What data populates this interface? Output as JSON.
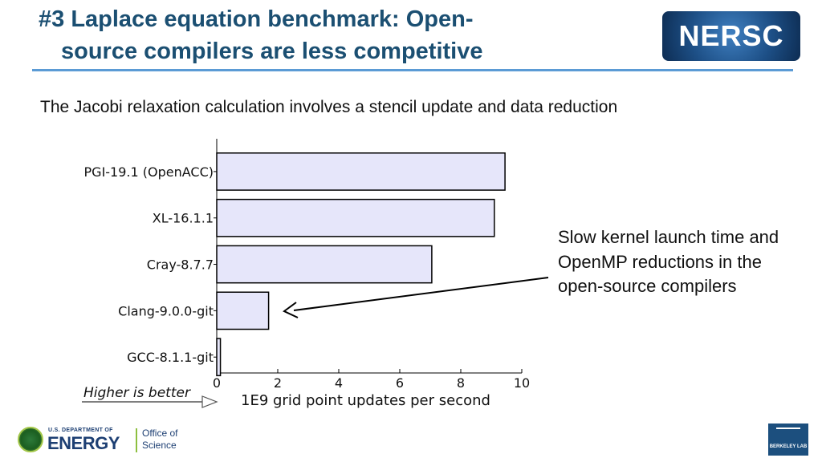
{
  "slide": {
    "title_line1": "#3 Laplace equation benchmark: Open-",
    "title_line2": "source compilers are less competitive",
    "subtitle": "The Jacobi relaxation calculation involves a stencil update and data reduction",
    "annotation": "Slow kernel launch time and OpenMP reductions in the open-source compilers"
  },
  "logos": {
    "nersc": "NERSC",
    "doe_small": "U.S. DEPARTMENT OF",
    "doe_big": "ENERGY",
    "doe_office": "Office of Science",
    "berkeley": "BERKELEY LAB"
  },
  "colors": {
    "title": "#1b4f72",
    "rule": "#5b9bd5",
    "bar_fill": "#e6e6fa",
    "bar_stroke": "#000000"
  },
  "chart_data": {
    "type": "bar",
    "orientation": "horizontal",
    "categories": [
      "PGI-19.1 (OpenACC)",
      "XL-16.1.1",
      "Cray-8.7.7",
      "Clang-9.0.0-git",
      "GCC-8.1.1-git"
    ],
    "values": [
      9.45,
      9.1,
      7.05,
      1.7,
      0.12
    ],
    "xlabel": "1E9 grid point updates per second",
    "xlim": [
      0,
      10
    ],
    "xticks": [
      0,
      2,
      4,
      6,
      8,
      10
    ],
    "grid": false,
    "note": "Higher is better"
  }
}
